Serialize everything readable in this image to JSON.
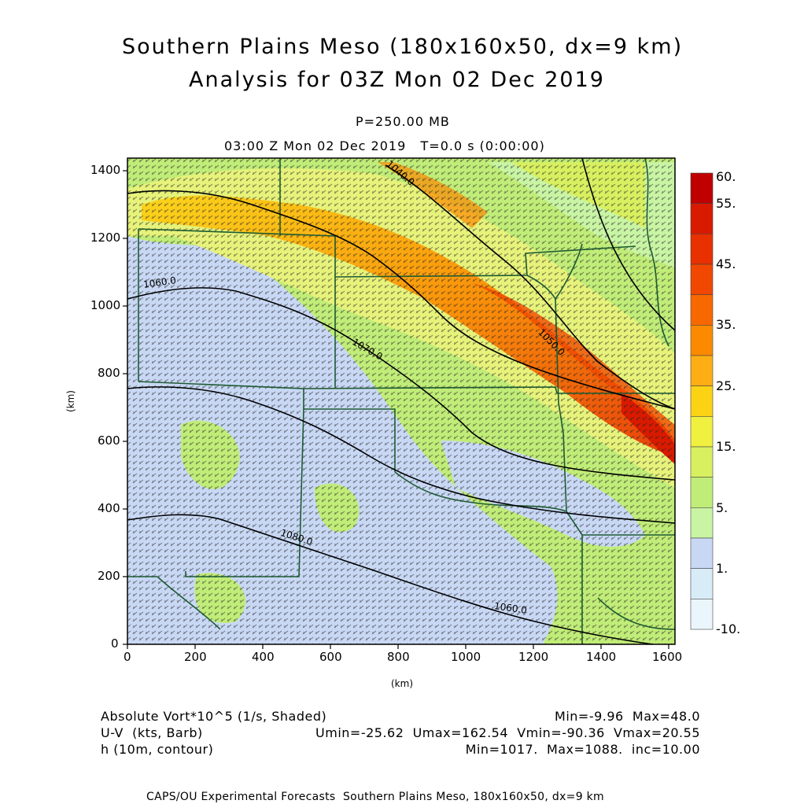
{
  "header": {
    "title_line1": "Southern Plains Meso (180x160x50, dx=9 km)",
    "title_line2": "Analysis for 03Z Mon 02 Dec 2019",
    "level": "P=250.00 MB",
    "valid_time": "03:00 Z Mon 02 Dec 2019   T=0.0 s (0:00:00)"
  },
  "axes": {
    "x_unit": "(km)",
    "y_unit": "(km)",
    "x_ticks": [
      "0",
      "200",
      "400",
      "600",
      "800",
      "1000",
      "1200",
      "1400",
      "1600"
    ],
    "y_ticks": [
      "0",
      "200",
      "400",
      "600",
      "800",
      "1000",
      "1200",
      "1400"
    ],
    "x_range": [
      0,
      1620
    ],
    "y_range": [
      0,
      1440
    ]
  },
  "colorbar": {
    "labels": [
      "60.",
      "55.",
      "45.",
      "35.",
      "25.",
      "15.",
      "5.",
      "1.",
      "-10."
    ],
    "colors": [
      "#c00000",
      "#d81a00",
      "#e83000",
      "#f04800",
      "#f86800",
      "#fb8a00",
      "#fcae14",
      "#fcd214",
      "#f0f040",
      "#d8f060",
      "#c0ec78",
      "#c8f4a4",
      "#c8d8f4",
      "#d8ecf8",
      "#eaf6fc"
    ]
  },
  "contour_labels": [
    "1060.0",
    "1070.0",
    "1080.0",
    "1050.0",
    "1040.0",
    "1060.0"
  ],
  "legend": {
    "row1_left": "Absolute Vort*10^5 (1/s, Shaded)",
    "row1_right": "Min=-9.96  Max=48.0",
    "row2_left": "U-V  (kts, Barb)",
    "row2_right": "Umin=-25.62  Umax=162.54  Vmin=-90.36  Vmax=20.55",
    "row3_left": "h (10m, contour)",
    "row3_right": "Min=1017.  Max=1088.  inc=10.00"
  },
  "footer": "CAPS/OU Experimental Forecasts  Southern Plains Meso, 180x160x50, dx=9 km"
}
